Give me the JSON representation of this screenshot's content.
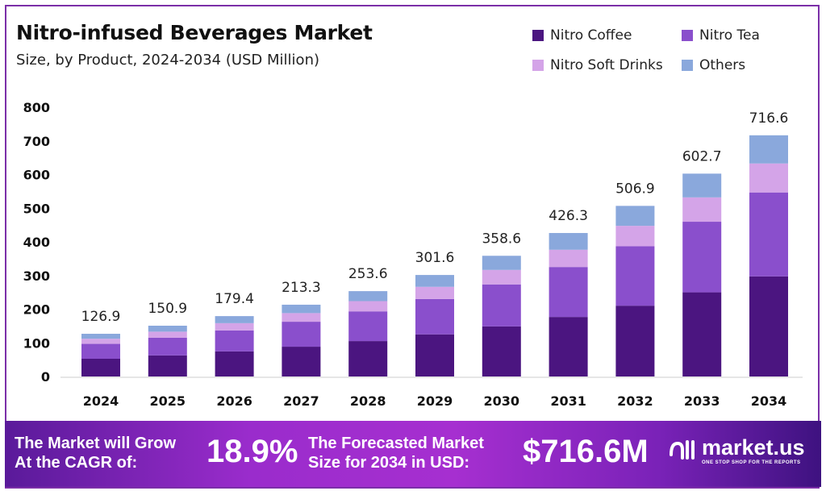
{
  "chart_data": {
    "type": "bar",
    "stacked": true,
    "title": "Nitro-infused Beverages Market",
    "subtitle": "Size, by Product, 2024-2034 (USD Million)",
    "categories": [
      "2024",
      "2025",
      "2026",
      "2027",
      "2028",
      "2029",
      "2030",
      "2031",
      "2032",
      "2033",
      "2034"
    ],
    "totals": [
      "126.9",
      "150.9",
      "179.4",
      "213.3",
      "253.6",
      "301.6",
      "358.6",
      "426.3",
      "506.9",
      "602.7",
      "716.6"
    ],
    "series": [
      {
        "name": "Nitro Coffee",
        "color": "#4b1580",
        "values": [
          52.7,
          62.6,
          74.5,
          88.5,
          105.2,
          125.2,
          148.8,
          176.9,
          210.4,
          250.1,
          297.4
        ]
      },
      {
        "name": "Nitro Tea",
        "color": "#8a4fcc",
        "values": [
          44.2,
          52.5,
          62.4,
          74.2,
          88.3,
          105.0,
          124.8,
          148.4,
          176.4,
          209.7,
          249.4
        ]
      },
      {
        "name": "Nitro Soft Drinks",
        "color": "#d4a4e8",
        "values": [
          15.2,
          18.1,
          21.5,
          25.6,
          30.4,
          36.2,
          43.0,
          51.2,
          60.8,
          72.3,
          86.0
        ]
      },
      {
        "name": "Others",
        "color": "#8aa8dc",
        "values": [
          14.8,
          17.7,
          21.0,
          25.0,
          29.7,
          35.2,
          42.0,
          49.8,
          59.3,
          70.6,
          83.8
        ]
      }
    ],
    "yticks": [
      "0",
      "100",
      "200",
      "300",
      "400",
      "500",
      "600",
      "700",
      "800"
    ],
    "ylim": [
      0,
      800
    ],
    "grid": false,
    "legend_position": "top-right"
  },
  "banner": {
    "cagr_label_1": "The Market will Grow",
    "cagr_label_2": "At the CAGR of:",
    "cagr_value": "18.9%",
    "forecast_label_1": "The Forecasted Market",
    "forecast_label_2": "Size for 2034 in USD:",
    "forecast_value": "$716.6M",
    "logo_name": "market.us",
    "logo_tagline": "ONE STOP SHOP FOR THE REPORTS"
  }
}
